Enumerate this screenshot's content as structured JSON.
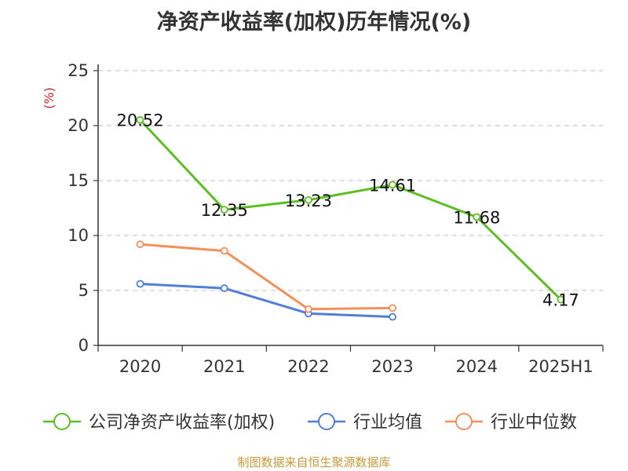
{
  "chart_data": {
    "type": "line",
    "title": "净资产收益率(加权)历年情况(%)",
    "ylabel": "(%)",
    "categories": [
      "2020",
      "2021",
      "2022",
      "2023",
      "2024",
      "2025H1"
    ],
    "ylim": [
      0,
      25
    ],
    "yticks": [
      0,
      5,
      10,
      15,
      20,
      25
    ],
    "grid": "horizontal-dashed",
    "legend_position": "bottom",
    "series": [
      {
        "name": "公司净资产收益率(加权)",
        "color": "#5bbf22",
        "values": [
          20.52,
          12.35,
          13.23,
          14.61,
          11.68,
          4.17
        ],
        "labels": [
          "20.52",
          "12.35",
          "13.23",
          "14.61",
          "11.68",
          "4.17"
        ]
      },
      {
        "name": "行业均值",
        "color": "#4f7fd8",
        "values": [
          5.6,
          5.2,
          2.9,
          2.6,
          null,
          null
        ]
      },
      {
        "name": "行业中位数",
        "color": "#f5905a",
        "values": [
          9.2,
          8.6,
          3.3,
          3.4,
          null,
          null
        ]
      }
    ]
  },
  "footer": {
    "source": "制图数据来自恒生聚源数据库"
  }
}
